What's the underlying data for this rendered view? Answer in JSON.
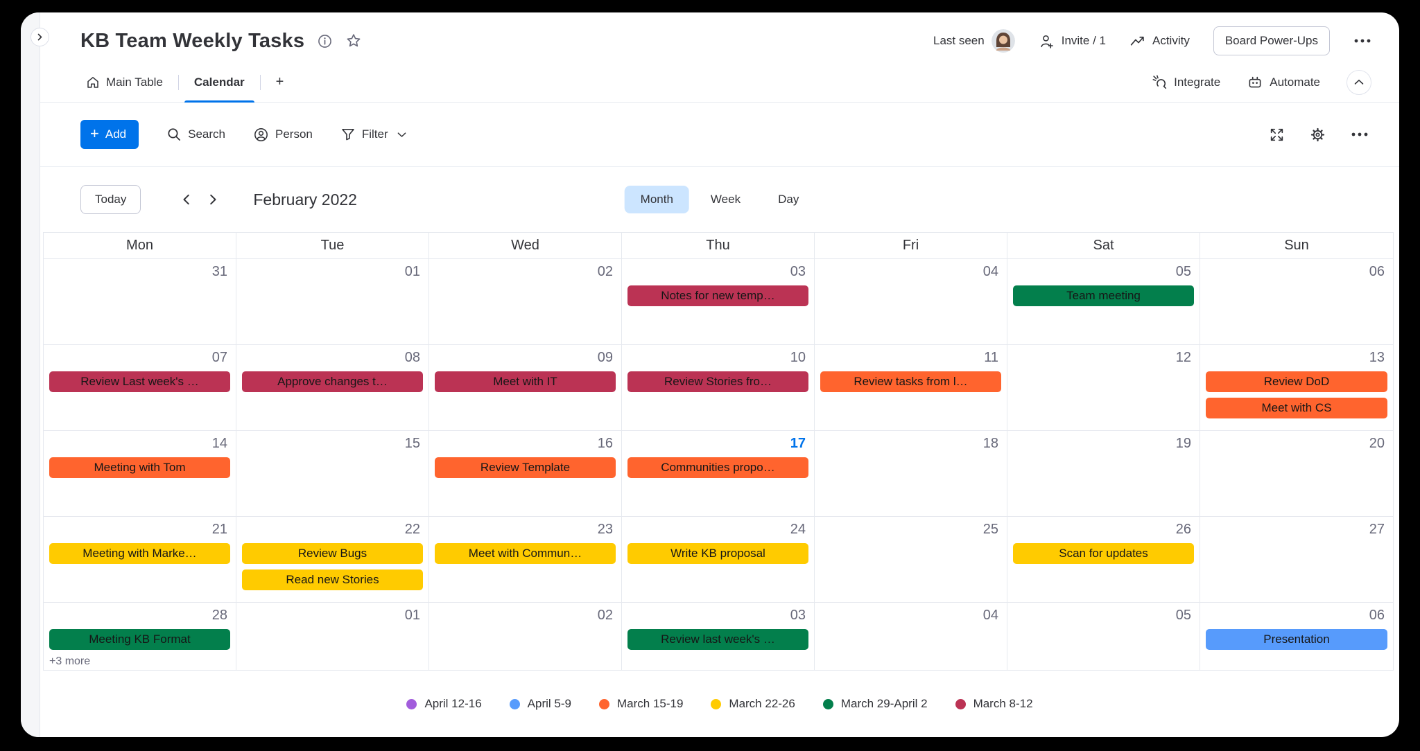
{
  "header": {
    "title": "KB Team Weekly Tasks",
    "last_seen_label": "Last seen",
    "invite_label": "Invite / 1",
    "activity_label": "Activity",
    "power_ups_label": "Board Power-Ups"
  },
  "tabs_bar": {
    "tabs": [
      {
        "label": "Main Table",
        "icon": "home",
        "active": false
      },
      {
        "label": "Calendar",
        "active": true
      },
      {
        "label": "+",
        "active": false
      }
    ],
    "integrate_label": "Integrate",
    "automate_label": "Automate"
  },
  "toolbar": {
    "add_label": "Add",
    "search_label": "Search",
    "person_label": "Person",
    "filter_label": "Filter"
  },
  "calendar_nav": {
    "today_label": "Today",
    "title": "February 2022",
    "views": [
      "Month",
      "Week",
      "Day"
    ],
    "active_view": "Month"
  },
  "calendar": {
    "day_headers": [
      "Mon",
      "Tue",
      "Wed",
      "Thu",
      "Fri",
      "Sat",
      "Sun"
    ],
    "weeks": [
      {
        "days": [
          {
            "date": "31"
          },
          {
            "date": "01"
          },
          {
            "date": "02"
          },
          {
            "date": "03",
            "events": [
              {
                "title": "Notes for new temp…",
                "color": "#bb3354"
              }
            ]
          },
          {
            "date": "04"
          },
          {
            "date": "05",
            "events": [
              {
                "title": "Team meeting",
                "color": "#037f4c"
              }
            ]
          },
          {
            "date": "06"
          }
        ]
      },
      {
        "days": [
          {
            "date": "07",
            "events": [
              {
                "title": "Review Last week's …",
                "color": "#bb3354"
              }
            ]
          },
          {
            "date": "08",
            "events": [
              {
                "title": "Approve changes t…",
                "color": "#bb3354"
              }
            ]
          },
          {
            "date": "09",
            "events": [
              {
                "title": "Meet with IT",
                "color": "#bb3354"
              }
            ]
          },
          {
            "date": "10",
            "events": [
              {
                "title": "Review Stories fro…",
                "color": "#bb3354"
              }
            ]
          },
          {
            "date": "11",
            "events": [
              {
                "title": "Review tasks from l…",
                "color": "#ff642e"
              }
            ]
          },
          {
            "date": "12"
          },
          {
            "date": "13",
            "events": [
              {
                "title": "Review DoD",
                "color": "#ff642e"
              },
              {
                "title": "Meet with CS",
                "color": "#ff642e"
              }
            ]
          }
        ]
      },
      {
        "days": [
          {
            "date": "14",
            "events": [
              {
                "title": "Meeting with Tom",
                "color": "#ff642e"
              }
            ]
          },
          {
            "date": "15"
          },
          {
            "date": "16",
            "events": [
              {
                "title": "Review Template",
                "color": "#ff642e"
              }
            ]
          },
          {
            "date": "17",
            "today": true,
            "events": [
              {
                "title": "Communities propo…",
                "color": "#ff642e"
              }
            ]
          },
          {
            "date": "18"
          },
          {
            "date": "19"
          },
          {
            "date": "20"
          }
        ]
      },
      {
        "days": [
          {
            "date": "21",
            "events": [
              {
                "title": "Meeting with Marke…",
                "color": "#ffcb00"
              }
            ]
          },
          {
            "date": "22",
            "events": [
              {
                "title": "Review Bugs",
                "color": "#ffcb00"
              },
              {
                "title": "Read new Stories",
                "color": "#ffcb00"
              }
            ]
          },
          {
            "date": "23",
            "events": [
              {
                "title": "Meet with Commun…",
                "color": "#ffcb00"
              }
            ]
          },
          {
            "date": "24",
            "events": [
              {
                "title": "Write KB proposal",
                "color": "#ffcb00"
              }
            ]
          },
          {
            "date": "25"
          },
          {
            "date": "26",
            "events": [
              {
                "title": "Scan for updates",
                "color": "#ffcb00"
              }
            ]
          },
          {
            "date": "27"
          }
        ]
      },
      {
        "days": [
          {
            "date": "28",
            "events": [
              {
                "title": "Meeting KB Format",
                "color": "#037f4c"
              }
            ],
            "more": "+3 more"
          },
          {
            "date": "01"
          },
          {
            "date": "02"
          },
          {
            "date": "03",
            "events": [
              {
                "title": "Review last week's …",
                "color": "#037f4c"
              }
            ]
          },
          {
            "date": "04"
          },
          {
            "date": "05"
          },
          {
            "date": "06",
            "events": [
              {
                "title": "Presentation",
                "color": "#579bfc"
              }
            ]
          }
        ]
      }
    ]
  },
  "legend": [
    {
      "label": "April 12-16",
      "color": "#a25ddc"
    },
    {
      "label": "April 5-9",
      "color": "#579bfc"
    },
    {
      "label": "March 15-19",
      "color": "#ff642e"
    },
    {
      "label": "March 22-26",
      "color": "#ffcb00"
    },
    {
      "label": "March 29-April 2",
      "color": "#037f4c"
    },
    {
      "label": "March 8-12",
      "color": "#bb3354"
    }
  ],
  "colors": {
    "accent_blue": "#0073ea",
    "month_pill_bg": "#cce5ff",
    "today_blue": "#0073ea"
  }
}
